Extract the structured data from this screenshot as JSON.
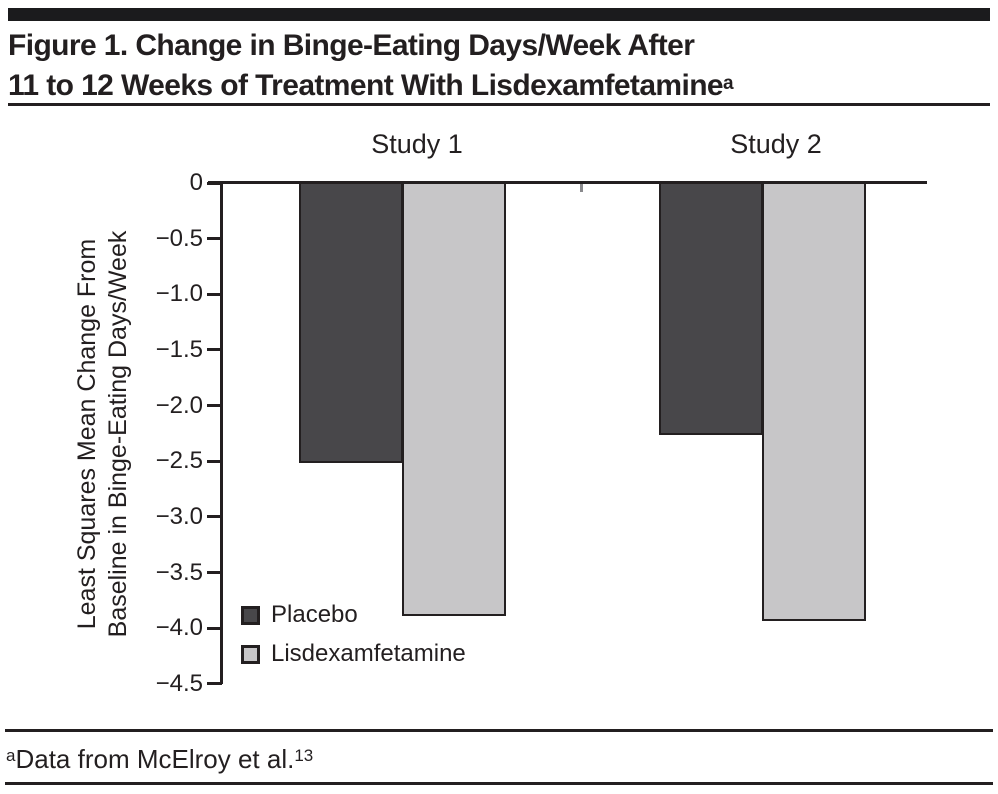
{
  "figure": {
    "title_line1": "Figure 1. Change in Binge-Eating Days/Week After",
    "title_line2": "11 to 12 Weeks of Treatment With Lisdexamfetamine",
    "title_superscript": "a",
    "footnote_superscript": "a",
    "footnote_text": "Data from McElroy et al.",
    "footnote_reference": "13"
  },
  "chart_data": {
    "type": "bar",
    "categories": [
      "Study 1",
      "Study 2"
    ],
    "series": [
      {
        "name": "Placebo",
        "color": "#48474a",
        "values": [
          -2.5,
          -2.25
        ]
      },
      {
        "name": "Lisdexamfetamine",
        "color": "#c7c6c8",
        "values": [
          -3.87,
          -3.92
        ]
      }
    ],
    "ylabel_line1": "Least Squares Mean Change From",
    "ylabel_line2": "Baseline in Binge-Eating Days/Week",
    "ylim": [
      0,
      -4.5
    ],
    "yticks": [
      {
        "label": "0",
        "value": 0
      },
      {
        "label": "−0.5",
        "value": -0.5
      },
      {
        "label": "−1.0",
        "value": -1.0
      },
      {
        "label": "−1.5",
        "value": -1.5
      },
      {
        "label": "−2.0",
        "value": -2.0
      },
      {
        "label": "−2.5",
        "value": -2.5
      },
      {
        "label": "−3.0",
        "value": -3.0
      },
      {
        "label": "−3.5",
        "value": -3.5
      },
      {
        "label": "−4.0",
        "value": -4.0
      },
      {
        "label": "−4.5",
        "value": -4.5
      }
    ],
    "grid": false,
    "legend_position": "inside-bottom-left",
    "axis_color": "#231f20"
  }
}
